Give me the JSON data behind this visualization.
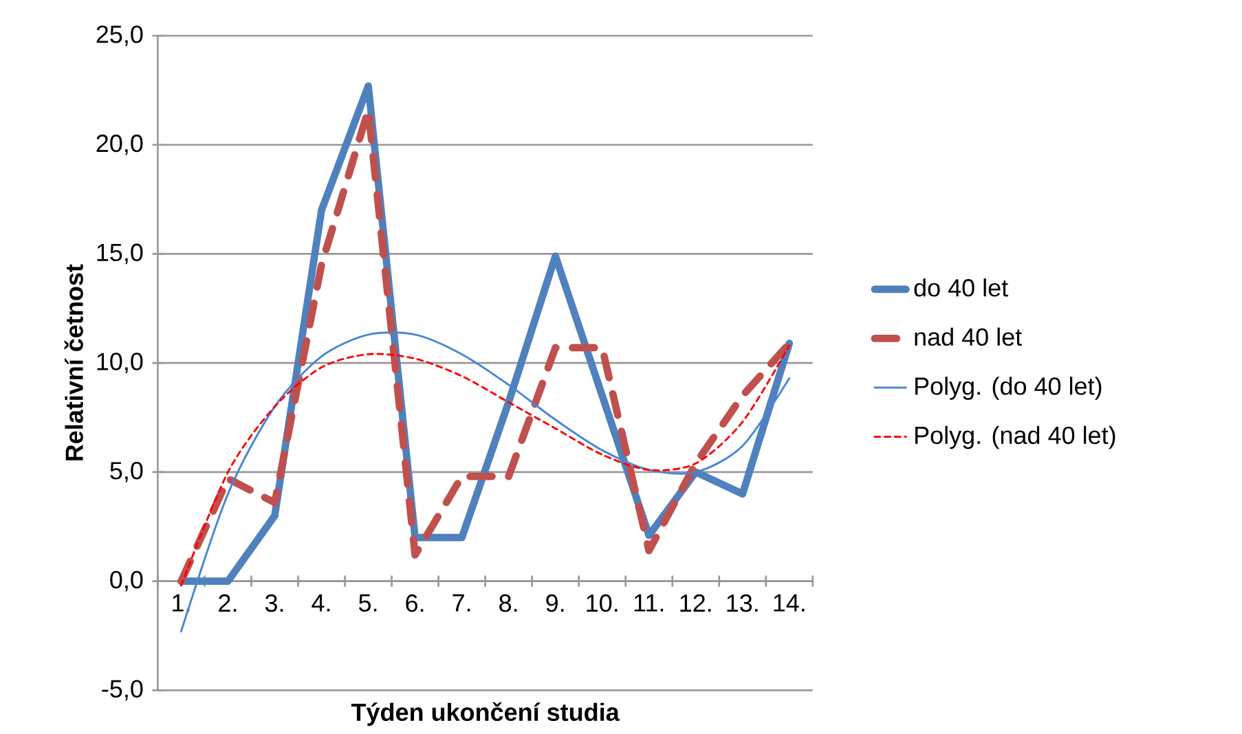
{
  "chart_data": {
    "type": "line",
    "xlabel": "Týden ukončení studia",
    "ylabel": "Relativní četnost",
    "categories": [
      "1.",
      "2.",
      "3.",
      "4.",
      "5.",
      "6.",
      "7.",
      "8.",
      "9.",
      "10.",
      "11.",
      "12.",
      "13.",
      "14."
    ],
    "series": [
      {
        "name": "do 40 let",
        "color": "#4f81bd",
        "line_style": "solid",
        "values": [
          0,
          0,
          3.0,
          17.0,
          22.7,
          2.0,
          2.0,
          8.2,
          14.9,
          8.5,
          2.1,
          5.0,
          4.0,
          10.9
        ]
      },
      {
        "name": "nad 40 let",
        "color": "#c0504d",
        "line_style": "dashed",
        "values": [
          0,
          4.7,
          3.6,
          14.5,
          21.6,
          1.2,
          4.8,
          4.8,
          10.7,
          10.7,
          1.4,
          5.4,
          8.5,
          10.9
        ]
      },
      {
        "name": "Polyg. (do 40 let)",
        "color": "#4a86d4",
        "line_style": "solid",
        "values": [
          -2.3,
          4.0,
          8.0,
          10.3,
          11.3,
          11.3,
          10.4,
          9.0,
          7.4,
          6.0,
          5.1,
          5.0,
          6.2,
          9.3
        ]
      },
      {
        "name": "Polyg. (nad 40 let)",
        "color": "#ff0000",
        "line_style": "dashed",
        "values": [
          -0.2,
          5.0,
          8.0,
          9.8,
          10.4,
          10.2,
          9.4,
          8.2,
          7.0,
          5.8,
          5.1,
          5.4,
          7.3,
          10.8
        ]
      }
    ],
    "ylim": [
      -5,
      25
    ],
    "yticks": [
      {
        "value": -5,
        "label": "-5,0"
      },
      {
        "value": 0,
        "label": "0,0"
      },
      {
        "value": 5,
        "label": "5,0"
      },
      {
        "value": 10,
        "label": "10,0"
      },
      {
        "value": 15,
        "label": "15,0"
      },
      {
        "value": 20,
        "label": "20,0"
      },
      {
        "value": 25,
        "label": "25,0"
      }
    ],
    "grid": "y",
    "legend": "right",
    "marker": "none"
  }
}
